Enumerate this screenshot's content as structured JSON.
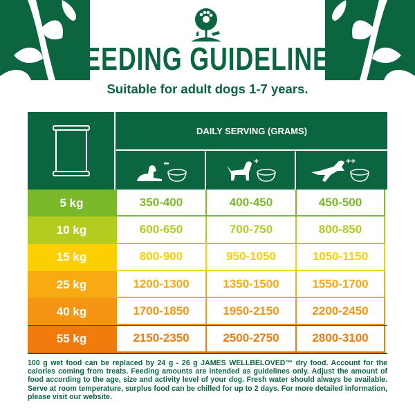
{
  "brand": {
    "logo": "James Wellbeloved tree logo",
    "green": "#0b6640"
  },
  "title": "FEEDING GUIDELINES",
  "subtitle": "Suitable for adult dogs 1-7 years.",
  "table": {
    "pack_icon": "wet-food-pouch-icon",
    "header": "DAILY SERVING (GRAMS)",
    "activity_levels": [
      {
        "icon": "resting-dog-icon",
        "sign": "-"
      },
      {
        "icon": "standing-dog-icon",
        "sign": "+"
      },
      {
        "icon": "jumping-dog-icon",
        "sign": "++"
      }
    ],
    "rows": [
      {
        "weight": "5 kg",
        "values": [
          "350-400",
          "400-450",
          "450-500"
        ],
        "color": "#7ab929"
      },
      {
        "weight": "10 kg",
        "values": [
          "600-650",
          "700-750",
          "800-850"
        ],
        "color": "#b4cc1f"
      },
      {
        "weight": "15 kg",
        "values": [
          "800-900",
          "950-1050",
          "1050-1150"
        ],
        "color": "#fcd000"
      },
      {
        "weight": "25 kg",
        "values": [
          "1200-1300",
          "1350-1500",
          "1550-1700"
        ],
        "color": "#f8aa12"
      },
      {
        "weight": "40 kg",
        "values": [
          "1700-1850",
          "1950-2150",
          "2200-2450"
        ],
        "color": "#f49614"
      },
      {
        "weight": "55 kg",
        "values": [
          "2150-2350",
          "2500-2750",
          "2800-3100"
        ],
        "color": "#f07c0e"
      }
    ]
  },
  "notes": "100 g wet food can be replaced by 24 g - 26 g JAMES WELLBELOVED™ dry food. Account for the calories coming from treats. Feeding amounts are intended as guidelines only. Adjust the amount of food according to the age, size and activity level of your dog. Fresh water should always be available. Serve at room temperature, surplus food can be chilled for up to 2 days. For more detailed information, please visit our website."
}
